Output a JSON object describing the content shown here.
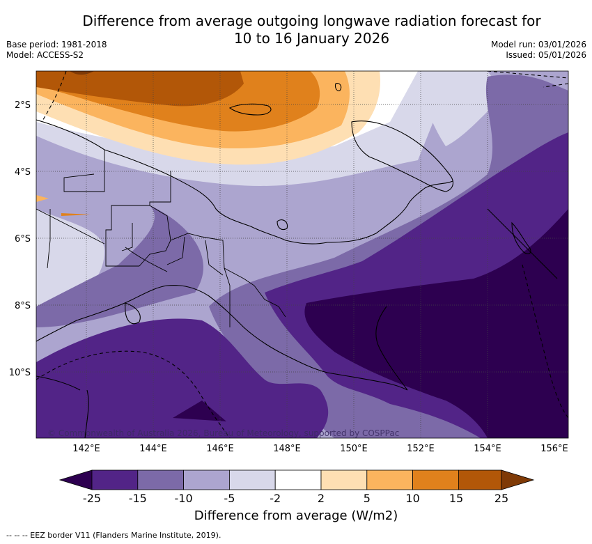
{
  "title_line1": "Difference from average outgoing longwave radiation forecast for",
  "title_line2": "10 to 16 January 2026",
  "base_period": "Base period: 1981-2018",
  "model": "Model: ACCESS-S2",
  "model_run": "Model run: 03/01/2026",
  "issued": "Issued: 05/01/2026",
  "lat_labels": [
    "2°S",
    "4°S",
    "6°S",
    "8°S",
    "10°S"
  ],
  "lon_labels": [
    "142°E",
    "144°E",
    "146°E",
    "148°E",
    "150°E",
    "152°E",
    "154°E",
    "156°E"
  ],
  "copyright": "© Commonwealth of Australia 2026, Bureau of Meteorology, supported by COSPPac",
  "colorbar": {
    "ticks": [
      "-25",
      "-15",
      "-10",
      "-5",
      "-2",
      "2",
      "5",
      "10",
      "15",
      "25"
    ],
    "title": "Difference from average (W/m2)",
    "colors": [
      "#2d0050",
      "#522487",
      "#7c6aa8",
      "#aca5cf",
      "#d8d8ea",
      "#ffffff",
      "#fedfb3",
      "#fbb45e",
      "#e0811c",
      "#b25708",
      "#7f3a06"
    ]
  },
  "footer": "-- -- -- EEZ border V11 (Flanders Marine Institute, 2019)."
}
